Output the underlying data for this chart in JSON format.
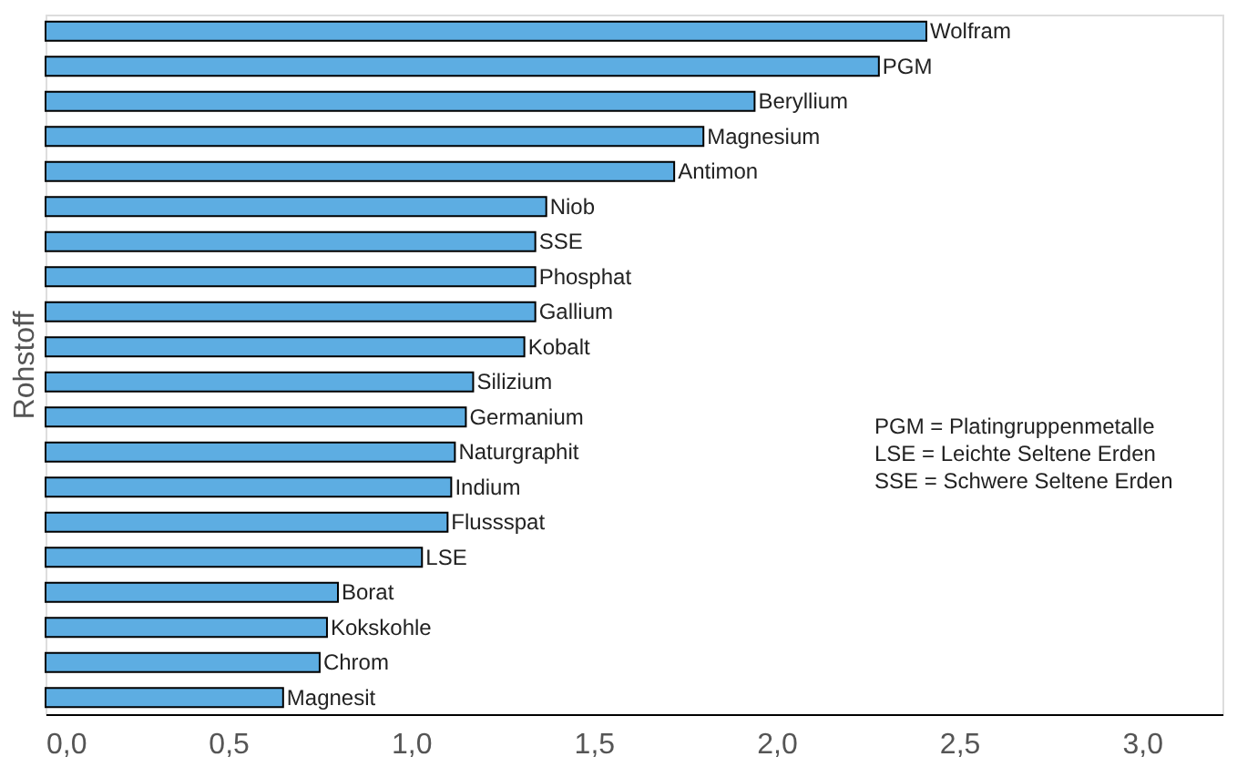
{
  "chart_data": {
    "type": "bar",
    "orientation": "horizontal",
    "ylabel": "Rohstoff",
    "categories": [
      "Wolfram",
      "PGM",
      "Beryllium",
      "Magnesium",
      "Antimon",
      "Niob",
      "SSE",
      "Phosphat",
      "Gallium",
      "Kobalt",
      "Silizium",
      "Germanium",
      "Naturgraphit",
      "Indium",
      "Flussspat",
      "LSE",
      "Borat",
      "Kokskohle",
      "Chrom",
      "Magnesit"
    ],
    "values": [
      2.41,
      2.28,
      1.94,
      1.8,
      1.72,
      1.37,
      1.34,
      1.34,
      1.34,
      1.31,
      1.17,
      1.15,
      1.12,
      1.11,
      1.1,
      1.03,
      0.8,
      0.77,
      0.75,
      0.65
    ],
    "color": "#5dade2",
    "xlim": [
      0,
      3.22
    ],
    "xticks": [
      {
        "value": 0,
        "label": "0,0"
      },
      {
        "value": 0.5,
        "label": "0,5"
      },
      {
        "value": 1,
        "label": "1,0"
      },
      {
        "value": 1.5,
        "label": "1,5"
      },
      {
        "value": 2,
        "label": "2,0"
      },
      {
        "value": 2.5,
        "label": "2,5"
      },
      {
        "value": 3,
        "label": "3,0"
      }
    ],
    "tick_labels": "x",
    "grid": false,
    "annotations": [
      "PGM  =  Platingruppenmetalle",
      "LSE   =  Leichte Seltene Erden",
      "SSE   =  Schwere Seltene Erden"
    ]
  }
}
